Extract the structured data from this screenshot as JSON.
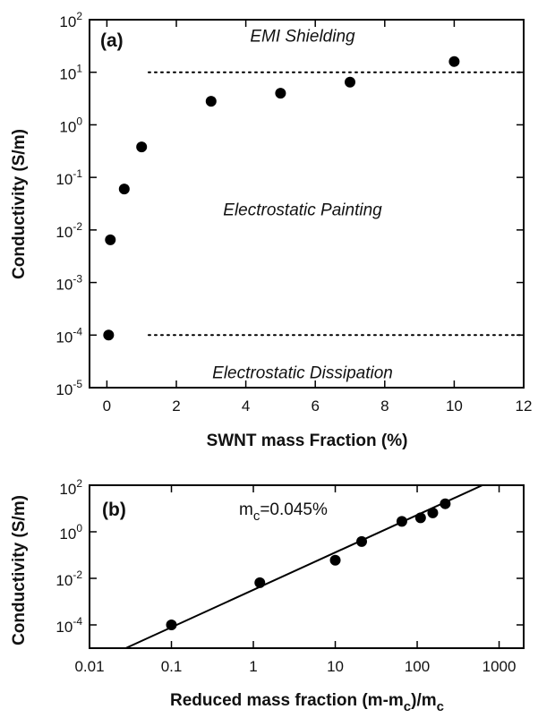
{
  "chart_data": [
    {
      "type": "scatter",
      "panel_label": "(a)",
      "xlabel": "SWNT mass Fraction (%)",
      "ylabel": "Conductivity (S/m)",
      "xlim": [
        -0.5,
        12
      ],
      "ylim_log10": [
        -5,
        2
      ],
      "yscale": "log",
      "x_ticks": [
        0,
        2,
        4,
        6,
        8,
        10,
        12
      ],
      "x_tick_labels": [
        "0",
        "2",
        "4",
        "6",
        "8",
        "10",
        "12"
      ],
      "y_tick_exponents": [
        -5,
        -4,
        -3,
        -2,
        -1,
        0,
        1,
        2
      ],
      "y_tick_base": "10",
      "y_tick_exp_labels": [
        "-5",
        "-4",
        "-3",
        "-2",
        "-1",
        "0",
        "1",
        "2"
      ],
      "points": [
        {
          "x": 0.05,
          "y": 0.0001
        },
        {
          "x": 0.1,
          "y": 0.0065
        },
        {
          "x": 0.5,
          "y": 0.06
        },
        {
          "x": 1.0,
          "y": 0.38
        },
        {
          "x": 3.0,
          "y": 2.8
        },
        {
          "x": 5.0,
          "y": 4.0
        },
        {
          "x": 7.0,
          "y": 6.5
        },
        {
          "x": 10.0,
          "y": 16.0
        }
      ],
      "reference_lines": [
        {
          "y": 10,
          "style": "dotted"
        },
        {
          "y": 0.0001,
          "style": "dotted"
        }
      ],
      "regions": [
        {
          "label": "EMI Shielding",
          "y": 50
        },
        {
          "label": "Electrostatic Painting",
          "y": 0.025
        },
        {
          "label": "Electrostatic Dissipation",
          "y": 2e-05
        }
      ]
    },
    {
      "type": "scatter",
      "panel_label": "(b)",
      "xlabel_main": "Reduced mass fraction (m-m",
      "xlabel_sub1": "c",
      "xlabel_mid": ")/m",
      "xlabel_sub2": "c",
      "ylabel": "Conductivity (S/m)",
      "annotation_main": "m",
      "annotation_sub": "c",
      "annotation_rest": "=0.045%",
      "xscale": "log",
      "yscale": "log",
      "xlim_log10": [
        -2,
        3.3
      ],
      "ylim_log10": [
        -5,
        2
      ],
      "x_tick_exponents": [
        -2,
        -1,
        0,
        1,
        2,
        3
      ],
      "x_tick_labels": [
        "0.01",
        "0.1",
        "1",
        "10",
        "100",
        "1000"
      ],
      "y_tick_exponents": [
        -4,
        -2,
        0,
        2
      ],
      "y_tick_base": "10",
      "y_tick_exp_labels": [
        "-4",
        "-2",
        "0",
        "2"
      ],
      "points": [
        {
          "x": 0.1,
          "y": 0.0001
        },
        {
          "x": 1.2,
          "y": 0.0065
        },
        {
          "x": 10,
          "y": 0.06
        },
        {
          "x": 21,
          "y": 0.38
        },
        {
          "x": 65,
          "y": 2.8
        },
        {
          "x": 110,
          "y": 4.0
        },
        {
          "x": 155,
          "y": 6.5
        },
        {
          "x": 220,
          "y": 16.0
        }
      ],
      "fit_line": {
        "type": "power_law",
        "x_start": 0.025,
        "y_start": 8.5e-06,
        "x_end": 700,
        "y_end": 120
      }
    }
  ]
}
